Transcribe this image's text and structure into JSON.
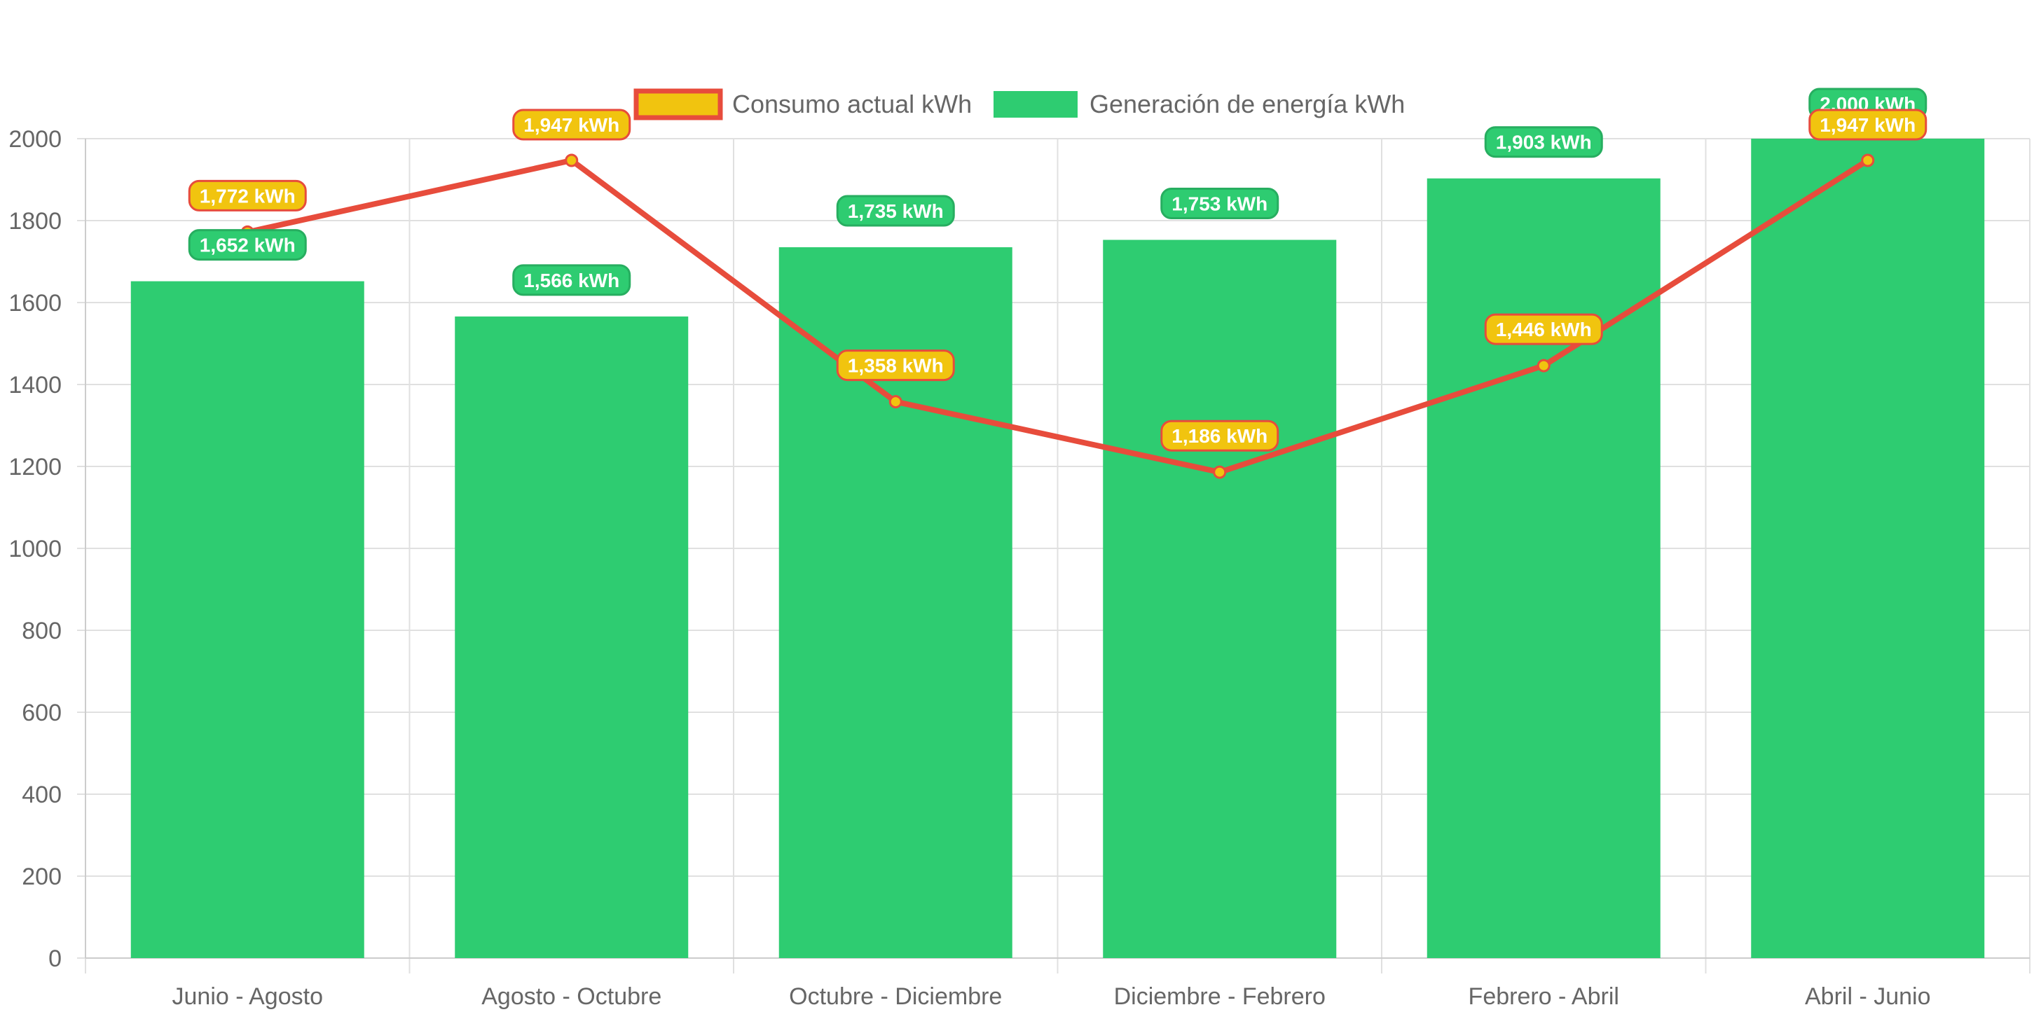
{
  "chart_data": {
    "type": "bar",
    "title": "",
    "xlabel": "",
    "ylabel": "",
    "categories": [
      "Junio - Agosto",
      "Agosto - Octubre",
      "Octubre - Diciembre",
      "Diciembre - Febrero",
      "Febrero - Abril",
      "Abril - Junio"
    ],
    "ylim": [
      0,
      2000
    ],
    "yticks": [
      "0",
      "200",
      "400",
      "600",
      "800",
      "1000",
      "1200",
      "1400",
      "1600",
      "1800",
      "2000"
    ],
    "grid": true,
    "legend_position": "top-center",
    "series": [
      {
        "name": "Consumo actual kWh",
        "type": "line",
        "values": [
          1772,
          1947,
          1358,
          1186,
          1446,
          1947
        ],
        "labels": [
          "1,772 kWh",
          "1,947 kWh",
          "1,358 kWh",
          "1,186 kWh",
          "1,446 kWh",
          "1,947 kWh"
        ],
        "line_color": "#e74c3c",
        "fill_color": "#f1c40f"
      },
      {
        "name": "Generación de energía kWh",
        "type": "bar",
        "values": [
          1652,
          1566,
          1735,
          1753,
          1903,
          2000
        ],
        "labels": [
          "1,652 kWh",
          "1,566 kWh",
          "1,735 kWh",
          "1,753 kWh",
          "1,903 kWh",
          "2.000 kWh"
        ],
        "color": "#2ecc71",
        "border_color": "#27ae60"
      }
    ]
  }
}
